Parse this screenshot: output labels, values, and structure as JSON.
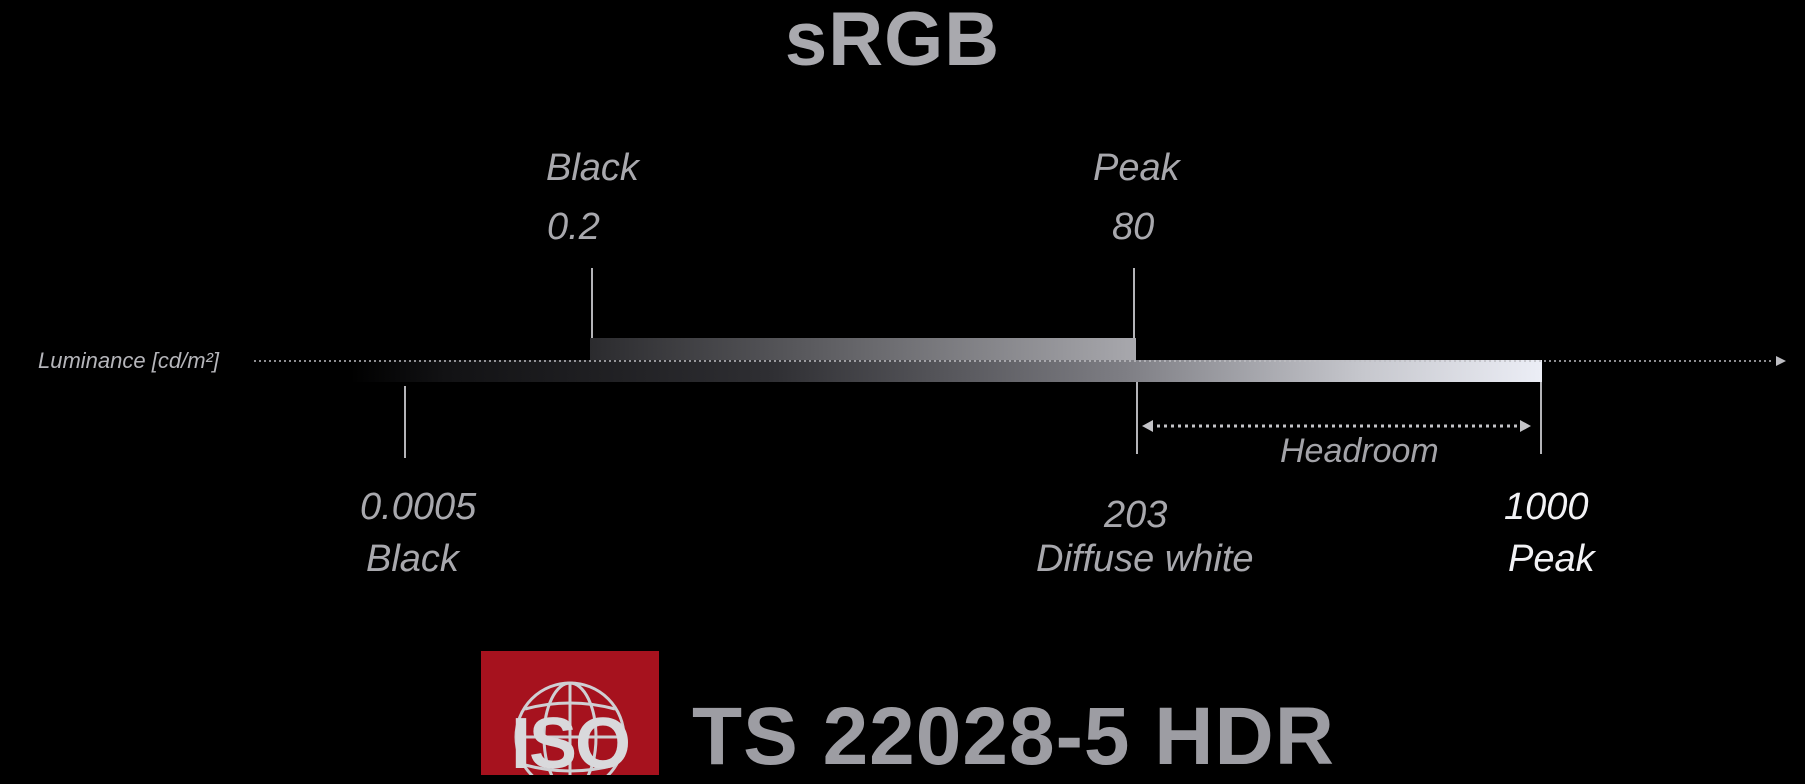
{
  "title": "sRGB",
  "axis": {
    "label": "Luminance [cd/m²]"
  },
  "srgb_range": {
    "black": {
      "name": "Black",
      "value": "0.2"
    },
    "peak": {
      "name": "Peak",
      "value": "80"
    }
  },
  "hdr_range": {
    "black": {
      "value": "0.0005",
      "name": "Black"
    },
    "diffuse_white": {
      "value": "203",
      "name": "Diffuse white"
    },
    "peak": {
      "value": "1000",
      "name": "Peak"
    },
    "headroom_label": "Headroom"
  },
  "logo": {
    "text": "ISO",
    "accent": "#a6121e"
  },
  "standard_title": "TS 22028-5 HDR",
  "colors": {
    "background": "#000000",
    "text": "#a8a8ad",
    "text_bright": "#f2f2f5",
    "bar_light": "#eceef6"
  }
}
